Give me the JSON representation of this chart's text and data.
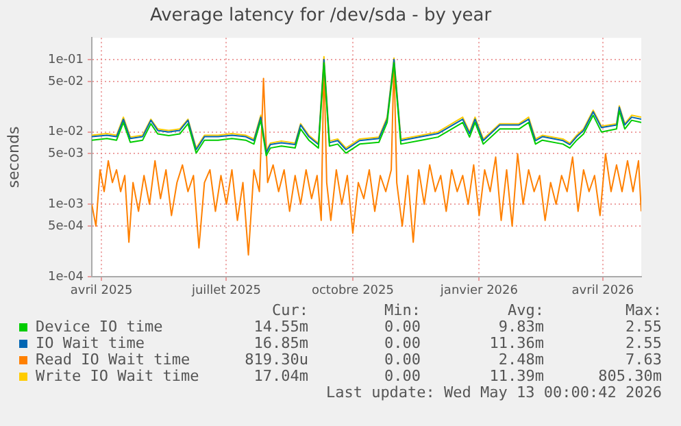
{
  "chart_data": {
    "type": "line",
    "title": "Average latency for /dev/sda - by year",
    "ylabel": "seconds",
    "log": "y",
    "grid": true,
    "legend": "bottom",
    "xlim": [
      "2025-03-25",
      "2026-04-29"
    ],
    "xticks": [
      {
        "value": "2025-04-01",
        "label": "avril 2025"
      },
      {
        "value": "2025-07-01",
        "label": "juillet 2025"
      },
      {
        "value": "2025-10-01",
        "label": "octobre 2025"
      },
      {
        "value": "2026-01-01",
        "label": "janvier 2026"
      },
      {
        "value": "2026-04-01",
        "label": "avril 2026"
      }
    ],
    "ylim": [
      0.0001,
      0.2
    ],
    "yticks": [
      {
        "value": 0.0001,
        "label": "1e-04"
      },
      {
        "value": 0.0005,
        "label": "5e-04"
      },
      {
        "value": 0.001,
        "label": "1e-03"
      },
      {
        "value": 0.005,
        "label": "5e-03"
      },
      {
        "value": 0.01,
        "label": "1e-02"
      },
      {
        "value": 0.05,
        "label": "5e-02"
      },
      {
        "value": 0.1,
        "label": "1e-01"
      }
    ],
    "x": [
      "2025-03-25",
      "2025-04-05",
      "2025-04-12",
      "2025-04-17",
      "2025-04-22",
      "2025-05-01",
      "2025-05-07",
      "2025-05-12",
      "2025-05-20",
      "2025-05-28",
      "2025-06-03",
      "2025-06-09",
      "2025-06-15",
      "2025-06-25",
      "2025-07-05",
      "2025-07-15",
      "2025-07-21",
      "2025-07-26",
      "2025-07-30",
      "2025-08-02",
      "2025-08-10",
      "2025-08-20",
      "2025-08-24",
      "2025-08-30",
      "2025-09-06",
      "2025-09-10",
      "2025-09-14",
      "2025-09-20",
      "2025-09-26",
      "2025-10-06",
      "2025-10-20",
      "2025-10-26",
      "2025-10-31",
      "2025-11-05",
      "2025-11-20",
      "2025-12-02",
      "2025-12-20",
      "2025-12-25",
      "2025-12-29",
      "2026-01-04",
      "2026-01-16",
      "2026-01-30",
      "2026-02-06",
      "2026-02-11",
      "2026-02-16",
      "2026-03-03",
      "2026-03-08",
      "2026-03-13",
      "2026-03-18",
      "2026-03-25",
      "2026-03-31",
      "2026-04-11",
      "2026-04-13",
      "2026-04-17",
      "2026-04-22",
      "2026-04-29"
    ],
    "series": [
      {
        "name": "Device IO time",
        "color": "#00cc00",
        "values": [
          0.0077,
          0.0081,
          0.0077,
          0.0135,
          0.0072,
          0.0077,
          0.013,
          0.0094,
          0.0089,
          0.0094,
          0.013,
          0.0051,
          0.0077,
          0.0077,
          0.0081,
          0.0077,
          0.0068,
          0.0145,
          0.0047,
          0.006,
          0.0064,
          0.006,
          0.011,
          0.0077,
          0.006,
          0.09,
          0.0064,
          0.0068,
          0.0051,
          0.0068,
          0.0072,
          0.0135,
          0.09,
          0.0068,
          0.0077,
          0.0085,
          0.0135,
          0.0085,
          0.0135,
          0.0068,
          0.011,
          0.011,
          0.0135,
          0.0068,
          0.0077,
          0.0068,
          0.006,
          0.0077,
          0.0094,
          0.017,
          0.01,
          0.011,
          0.0195,
          0.011,
          0.0145,
          0.0135
        ]
      },
      {
        "name": "IO Wait time",
        "color": "#0066b3",
        "values": [
          0.0086,
          0.009,
          0.0086,
          0.015,
          0.0081,
          0.0086,
          0.0145,
          0.0105,
          0.01,
          0.0105,
          0.0145,
          0.0057,
          0.0086,
          0.0086,
          0.009,
          0.0086,
          0.0076,
          0.016,
          0.0052,
          0.0067,
          0.0071,
          0.0067,
          0.0125,
          0.0086,
          0.0067,
          0.1,
          0.0071,
          0.0076,
          0.0057,
          0.0076,
          0.0081,
          0.015,
          0.1,
          0.0076,
          0.0086,
          0.0095,
          0.015,
          0.0095,
          0.015,
          0.0076,
          0.0125,
          0.0125,
          0.015,
          0.0076,
          0.0086,
          0.0076,
          0.0067,
          0.0086,
          0.0105,
          0.019,
          0.0115,
          0.0125,
          0.022,
          0.0125,
          0.016,
          0.015
        ]
      },
      {
        "name": "Read IO Wait time",
        "color": "#ff8000",
        "x": [
          "2025-03-25",
          "2025-03-28",
          "2025-03-31",
          "2025-04-03",
          "2025-04-06",
          "2025-04-09",
          "2025-04-12",
          "2025-04-15",
          "2025-04-18",
          "2025-04-21",
          "2025-04-24",
          "2025-04-28",
          "2025-05-02",
          "2025-05-06",
          "2025-05-10",
          "2025-05-14",
          "2025-05-18",
          "2025-05-22",
          "2025-05-26",
          "2025-05-30",
          "2025-06-03",
          "2025-06-07",
          "2025-06-11",
          "2025-06-15",
          "2025-06-19",
          "2025-06-23",
          "2025-06-27",
          "2025-07-01",
          "2025-07-05",
          "2025-07-09",
          "2025-07-13",
          "2025-07-17",
          "2025-07-21",
          "2025-07-25",
          "2025-07-28",
          "2025-07-31",
          "2025-08-04",
          "2025-08-08",
          "2025-08-12",
          "2025-08-16",
          "2025-08-20",
          "2025-08-24",
          "2025-08-28",
          "2025-09-01",
          "2025-09-05",
          "2025-09-08",
          "2025-09-10",
          "2025-09-12",
          "2025-09-15",
          "2025-09-19",
          "2025-09-23",
          "2025-09-27",
          "2025-10-01",
          "2025-10-05",
          "2025-10-09",
          "2025-10-13",
          "2025-10-17",
          "2025-10-21",
          "2025-10-25",
          "2025-10-29",
          "2025-10-31",
          "2025-11-02",
          "2025-11-06",
          "2025-11-10",
          "2025-11-14",
          "2025-11-18",
          "2025-11-22",
          "2025-11-26",
          "2025-11-30",
          "2025-12-04",
          "2025-12-08",
          "2025-12-12",
          "2025-12-16",
          "2025-12-20",
          "2025-12-24",
          "2025-12-28",
          "2026-01-01",
          "2026-01-05",
          "2026-01-09",
          "2026-01-13",
          "2026-01-17",
          "2026-01-21",
          "2026-01-25",
          "2026-01-29",
          "2026-02-02",
          "2026-02-06",
          "2026-02-10",
          "2026-02-14",
          "2026-02-18",
          "2026-02-22",
          "2026-02-26",
          "2026-03-02",
          "2026-03-06",
          "2026-03-10",
          "2026-03-14",
          "2026-03-18",
          "2026-03-22",
          "2026-03-26",
          "2026-03-30",
          "2026-04-03",
          "2026-04-07",
          "2026-04-11",
          "2026-04-15",
          "2026-04-19",
          "2026-04-23",
          "2026-04-27",
          "2026-04-29"
        ],
        "values": [
          0.001,
          0.0005,
          0.003,
          0.0015,
          0.004,
          0.002,
          0.003,
          0.0015,
          0.0025,
          0.0003,
          0.002,
          0.0008,
          0.0025,
          0.001,
          0.004,
          0.0012,
          0.003,
          0.0007,
          0.002,
          0.0035,
          0.0015,
          0.0025,
          0.00025,
          0.002,
          0.003,
          0.0008,
          0.0025,
          0.001,
          0.003,
          0.0006,
          0.002,
          0.0002,
          0.003,
          0.0015,
          0.055,
          0.002,
          0.0035,
          0.0015,
          0.003,
          0.0008,
          0.0025,
          0.001,
          0.003,
          0.0012,
          0.0025,
          0.0006,
          0.1,
          0.002,
          0.0006,
          0.003,
          0.001,
          0.0025,
          0.0004,
          0.002,
          0.0012,
          0.003,
          0.0008,
          0.0025,
          0.0015,
          0.003,
          0.1,
          0.002,
          0.0005,
          0.0025,
          0.0003,
          0.003,
          0.001,
          0.0035,
          0.0015,
          0.0025,
          0.0008,
          0.003,
          0.0015,
          0.0025,
          0.001,
          0.0035,
          0.0007,
          0.003,
          0.0015,
          0.0045,
          0.0006,
          0.003,
          0.0005,
          0.005,
          0.001,
          0.003,
          0.0015,
          0.0025,
          0.0006,
          0.002,
          0.001,
          0.0025,
          0.0015,
          0.0045,
          0.0008,
          0.003,
          0.0015,
          0.0025,
          0.0007,
          0.005,
          0.0015,
          0.0035,
          0.0015,
          0.004,
          0.0015,
          0.004,
          0.0008
        ]
      },
      {
        "name": "Write IO Wait time",
        "color": "#ffcc00",
        "values": [
          0.009,
          0.0095,
          0.009,
          0.016,
          0.0085,
          0.009,
          0.015,
          0.011,
          0.0105,
          0.011,
          0.015,
          0.006,
          0.009,
          0.009,
          0.0095,
          0.009,
          0.008,
          0.017,
          0.0055,
          0.007,
          0.0075,
          0.007,
          0.013,
          0.009,
          0.007,
          0.11,
          0.0075,
          0.008,
          0.006,
          0.008,
          0.0085,
          0.016,
          0.105,
          0.008,
          0.009,
          0.01,
          0.016,
          0.01,
          0.016,
          0.008,
          0.013,
          0.013,
          0.016,
          0.008,
          0.009,
          0.008,
          0.007,
          0.009,
          0.011,
          0.02,
          0.012,
          0.013,
          0.023,
          0.013,
          0.017,
          0.016
        ]
      }
    ],
    "annotations": [
      "Cur:",
      "Min:",
      "Avg:",
      "Max:",
      "14.55m",
      "0.00",
      "9.83m",
      "2.55",
      "16.85m",
      "0.00",
      "11.36m",
      "2.55",
      "819.30u",
      "0.00",
      "2.48m",
      "7.63",
      "17.04m",
      "0.00",
      "11.39m",
      "805.30m",
      "Last update: Wed May 13 00:00:42 2026"
    ]
  }
}
